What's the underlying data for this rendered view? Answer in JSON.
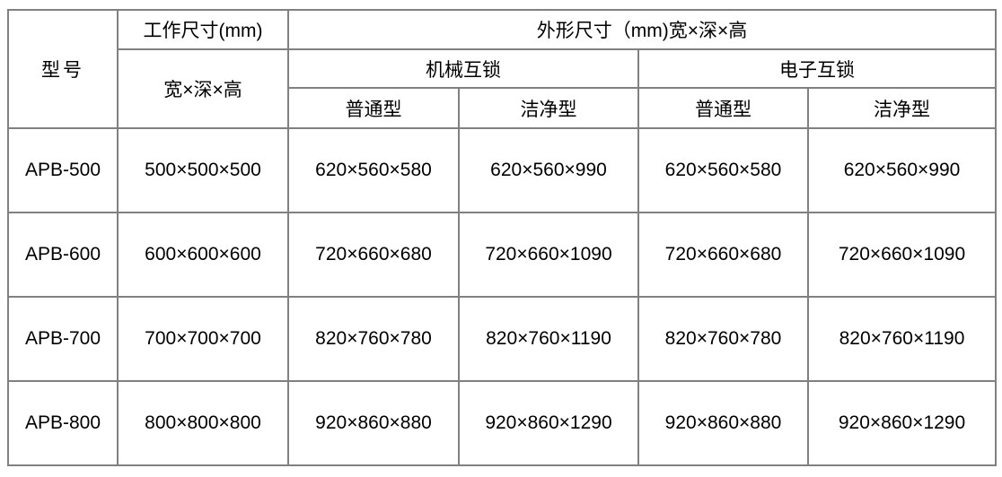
{
  "colors": {
    "border": "#808080",
    "outer_border": "#6e6e6e",
    "text": "#000000",
    "background": "#ffffff"
  },
  "chart_data": {
    "type": "table",
    "title": "",
    "header": {
      "model": "型号",
      "work_size": "工作尺寸(mm)",
      "work_size_sub": "宽×深×高",
      "outer_size": "外形尺寸（mm)宽×深×高",
      "mechanical": "机械互锁",
      "electronic": "电子互锁",
      "mech_normal": "普通型",
      "mech_clean": "洁净型",
      "elec_normal": "普通型",
      "elec_clean": "洁净型"
    },
    "rows": [
      [
        "APB-500",
        "500×500×500",
        "620×560×580",
        "620×560×990",
        "620×560×580",
        "620×560×990"
      ],
      [
        "APB-600",
        "600×600×600",
        "720×660×680",
        "720×660×1090",
        "720×660×680",
        "720×660×1090"
      ],
      [
        "APB-700",
        "700×700×700",
        "820×760×780",
        "820×760×1190",
        "820×760×780",
        "820×760×1190"
      ],
      [
        "APB-800",
        "800×800×800",
        "920×860×880",
        "920×860×1290",
        "920×860×880",
        "920×860×1290"
      ]
    ]
  }
}
